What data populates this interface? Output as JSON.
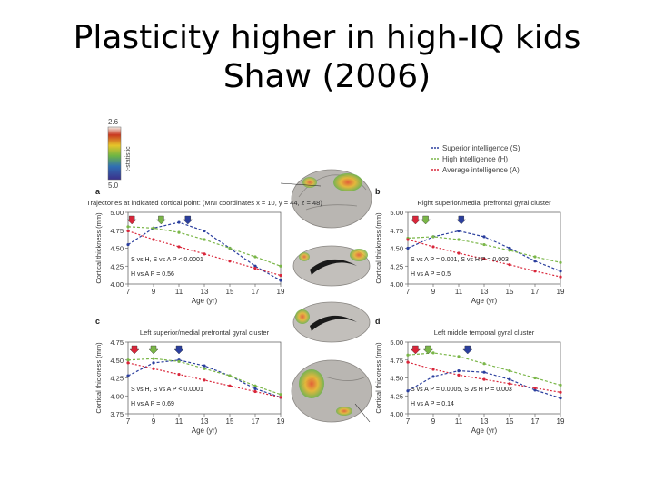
{
  "slide": {
    "title_line1": "Plasticity higher in high-IQ kids",
    "title_line2": "Shaw (2006)"
  },
  "colorbar": {
    "top_value": "2.6",
    "bottom_value": "5.0",
    "label": "t-statistic"
  },
  "legend": {
    "items": [
      {
        "label": "Superior intelligence (S)",
        "color": "#2b3f9e"
      },
      {
        "label": "High intelligence (H)",
        "color": "#7ab648"
      },
      {
        "label": "Average intelligence (A)",
        "color": "#d9263a"
      }
    ]
  },
  "chart_data": [
    {
      "type": "line",
      "panel": "a",
      "title": "Trajectories at indicated cortical point: (MNI coordinates x = 10, y = 44, z = 48)",
      "xlabel": "Age (yr)",
      "ylabel": "Cortical thickness (mm)",
      "xticks": [
        "7",
        "9",
        "11",
        "13",
        "15",
        "17",
        "19"
      ],
      "yticks": [
        "5.00",
        "4.75",
        "4.50",
        "4.25",
        "4.00"
      ],
      "xlim": [
        7,
        19
      ],
      "ylim": [
        4.0,
        5.0
      ],
      "x": [
        7,
        9,
        11,
        13,
        15,
        17,
        19
      ],
      "series": [
        {
          "name": "Superior intelligence (S)",
          "values": [
            4.55,
            4.78,
            4.86,
            4.74,
            4.5,
            4.25,
            4.05
          ]
        },
        {
          "name": "High intelligence (H)",
          "values": [
            4.8,
            4.78,
            4.72,
            4.62,
            4.5,
            4.38,
            4.25
          ]
        },
        {
          "name": "Average intelligence (A)",
          "values": [
            4.74,
            4.62,
            4.52,
            4.42,
            4.32,
            4.22,
            4.12
          ]
        }
      ],
      "annotations": [
        "S vs H, S vs A P < 0.0001",
        "H vs A P = 0.56"
      ],
      "peak_markers": [
        7.3,
        9.6,
        11.7
      ]
    },
    {
      "type": "line",
      "panel": "b",
      "title": "Right superior/medial prefrontal gyral cluster",
      "xlabel": "Age (yr)",
      "ylabel": "Cortical thickness (mm)",
      "xticks": [
        "7",
        "9",
        "11",
        "13",
        "15",
        "17",
        "19"
      ],
      "yticks": [
        "5.00",
        "4.75",
        "4.50",
        "4.25",
        "4.00"
      ],
      "xlim": [
        7,
        19
      ],
      "ylim": [
        4.0,
        5.0
      ],
      "x": [
        7,
        9,
        11,
        13,
        15,
        17,
        19
      ],
      "series": [
        {
          "name": "Superior intelligence (S)",
          "values": [
            4.5,
            4.66,
            4.74,
            4.66,
            4.5,
            4.32,
            4.18
          ]
        },
        {
          "name": "High intelligence (H)",
          "values": [
            4.64,
            4.66,
            4.62,
            4.55,
            4.47,
            4.38,
            4.3
          ]
        },
        {
          "name": "Average intelligence (A)",
          "values": [
            4.62,
            4.52,
            4.43,
            4.35,
            4.27,
            4.18,
            4.1
          ]
        }
      ],
      "annotations": [
        "S vs A P = 0.001, S vs H P = 0.003",
        "H vs A P = 0.5"
      ],
      "peak_markers": [
        7.6,
        8.4,
        11.2
      ]
    },
    {
      "type": "line",
      "panel": "c",
      "title": "Left superior/medial prefrontal gyral cluster",
      "xlabel": "Age (yr)",
      "ylabel": "Cortical thickness (mm)",
      "xticks": [
        "7",
        "9",
        "11",
        "13",
        "15",
        "17",
        "19"
      ],
      "yticks": [
        "4.75",
        "4.50",
        "4.25",
        "4.00",
        "3.75"
      ],
      "xlim": [
        7,
        19
      ],
      "ylim": [
        3.75,
        4.75
      ],
      "x": [
        7,
        9,
        11,
        13,
        15,
        17,
        19
      ],
      "series": [
        {
          "name": "Superior intelligence (S)",
          "values": [
            4.28,
            4.46,
            4.5,
            4.42,
            4.28,
            4.1,
            3.98
          ]
        },
        {
          "name": "High intelligence (H)",
          "values": [
            4.5,
            4.52,
            4.48,
            4.38,
            4.28,
            4.14,
            4.02
          ]
        },
        {
          "name": "Average intelligence (A)",
          "values": [
            4.46,
            4.38,
            4.3,
            4.22,
            4.14,
            4.06,
            3.98
          ]
        }
      ],
      "annotations": [
        "S vs H, S vs A P < 0.0001",
        "H vs A P = 0.69"
      ],
      "peak_markers": [
        7.5,
        9.0,
        11.0
      ]
    },
    {
      "type": "line",
      "panel": "d",
      "title": "Left middle temporal gyral cluster",
      "xlabel": "Age (yr)",
      "ylabel": "Cortical thickness (mm)",
      "xticks": [
        "7",
        "9",
        "11",
        "13",
        "15",
        "17",
        "19"
      ],
      "yticks": [
        "5.00",
        "4.75",
        "4.50",
        "4.25",
        "4.00"
      ],
      "xlim": [
        7,
        19
      ],
      "ylim": [
        4.0,
        5.0
      ],
      "x": [
        7,
        9,
        11,
        13,
        15,
        17,
        19
      ],
      "series": [
        {
          "name": "Superior intelligence (S)",
          "values": [
            4.32,
            4.52,
            4.6,
            4.58,
            4.48,
            4.33,
            4.22
          ]
        },
        {
          "name": "High intelligence (H)",
          "values": [
            4.82,
            4.85,
            4.8,
            4.7,
            4.6,
            4.5,
            4.4
          ]
        },
        {
          "name": "Average intelligence (A)",
          "values": [
            4.72,
            4.62,
            4.54,
            4.48,
            4.42,
            4.36,
            4.3
          ]
        }
      ],
      "annotations": [
        "S vs A P = 0.0005, S vs H P = 0.003",
        "H vs A P = 0.14"
      ],
      "peak_markers": [
        7.6,
        8.6,
        11.7
      ]
    }
  ]
}
